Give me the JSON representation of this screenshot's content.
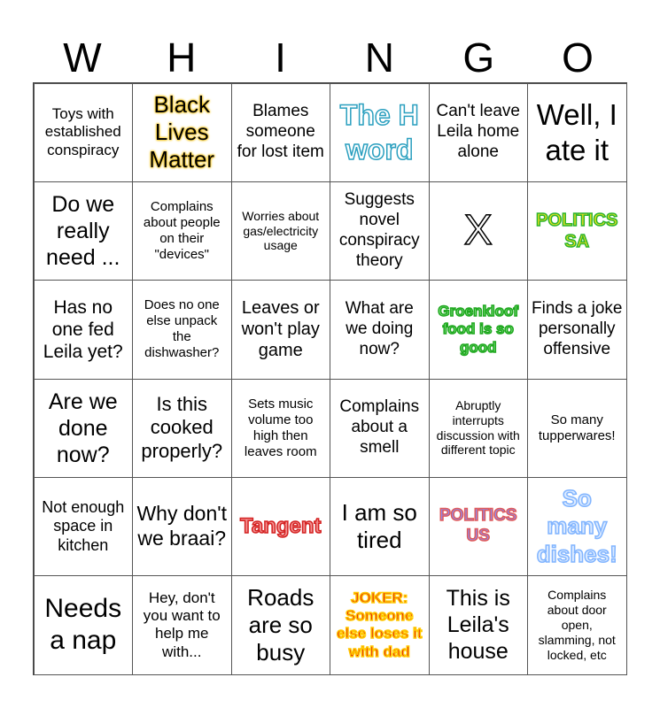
{
  "header": [
    "W",
    "H",
    "I",
    "N",
    "G",
    "O"
  ],
  "cells": [
    {
      "text": "Toys with established conspiracy"
    },
    {
      "text": "Black Lives Matter",
      "style": "blm"
    },
    {
      "text": "Blames someone for lost item"
    },
    {
      "text": "The H word",
      "style": "hword"
    },
    {
      "text": "Can't leave Leila home alone"
    },
    {
      "text": "Well, I ate it"
    },
    {
      "text": "Do we really need ..."
    },
    {
      "text": "Complains about people on their \"devices\""
    },
    {
      "text": "Worries about gas/electricity usage"
    },
    {
      "text": "Suggests novel conspiracy theory"
    },
    {
      "text": "X",
      "style": "free"
    },
    {
      "text": "POLITICS SA",
      "style": "polsa"
    },
    {
      "text": "Has no one fed Leila yet?"
    },
    {
      "text": "Does no one else unpack the dishwasher?"
    },
    {
      "text": "Leaves or won't play game"
    },
    {
      "text": "What are we doing now?"
    },
    {
      "text": "Groenkloof food is so good",
      "style": "groen"
    },
    {
      "text": "Finds a joke personally offensive"
    },
    {
      "text": "Are we done now?"
    },
    {
      "text": "Is this cooked properly?"
    },
    {
      "text": "Sets music volume too high then leaves room"
    },
    {
      "text": "Complains about a smell"
    },
    {
      "text": "Abruptly interrupts discussion with different topic"
    },
    {
      "text": "So many tupperwares!"
    },
    {
      "text": "Not enough space in kitchen"
    },
    {
      "text": "Why don't we braai?"
    },
    {
      "text": "Tangent",
      "style": "tangent"
    },
    {
      "text": "I am so tired"
    },
    {
      "text": "POLITICS US",
      "style": "polus"
    },
    {
      "text": "So many dishes!",
      "style": "dishes"
    },
    {
      "text": "Needs a nap"
    },
    {
      "text": "Hey, don't you want to help me with..."
    },
    {
      "text": "Roads are so busy"
    },
    {
      "text": "JOKER: Someone else loses it with dad",
      "style": "joker"
    },
    {
      "text": "This is Leila's house"
    },
    {
      "text": "Complains about door open, slamming, not locked, etc"
    }
  ]
}
